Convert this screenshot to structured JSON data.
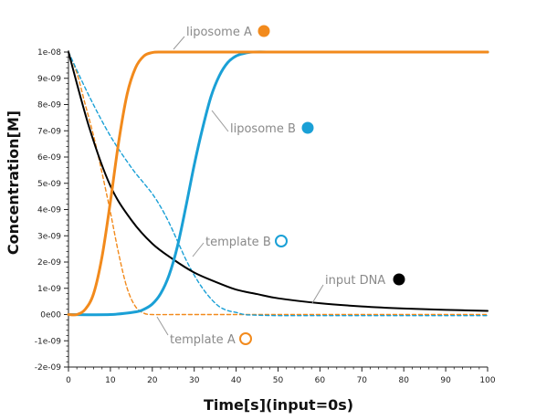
{
  "chart_data": {
    "type": "line",
    "xlabel": "Time[s](input=0s)",
    "ylabel": "Concentration[M]",
    "xlim": [
      0,
      100
    ],
    "ylim": [
      -2e-09,
      1e-08
    ],
    "x_ticks": [
      "0",
      "10",
      "20",
      "30",
      "40",
      "50",
      "60",
      "70",
      "80",
      "90",
      "100"
    ],
    "y_ticks": [
      "-2e-09",
      "-1e-09",
      "0e00",
      "1e-09",
      "2e-09",
      "3e-09",
      "4e-09",
      "5e-09",
      "6e-09",
      "7e-09",
      "8e-09",
      "9e-09",
      "1e-08"
    ],
    "grid": false,
    "series": [
      {
        "name": "liposome A",
        "color": "#f28a1c",
        "style": "solid",
        "marker": "filled-circle",
        "x": [
          0,
          2,
          4,
          6,
          8,
          10,
          12,
          14,
          16,
          18,
          20,
          22,
          24,
          30,
          40,
          50,
          60,
          70,
          80,
          90,
          100
        ],
        "y": [
          0,
          0,
          2e-10,
          8e-10,
          2.2e-09,
          4.3e-09,
          6.6e-09,
          8.4e-09,
          9.4e-09,
          9.85e-09,
          9.98e-09,
          1e-08,
          1e-08,
          1e-08,
          1e-08,
          1e-08,
          1e-08,
          1e-08,
          1e-08,
          1e-08,
          1e-08
        ]
      },
      {
        "name": "liposome B",
        "color": "#1aa0d6",
        "style": "solid",
        "marker": "filled-circle",
        "x": [
          0,
          10,
          16,
          18,
          20,
          22,
          24,
          26,
          28,
          30,
          32,
          34,
          36,
          38,
          40,
          42,
          44,
          50,
          60,
          70,
          80,
          90,
          100
        ],
        "y": [
          0,
          0,
          1e-10,
          2e-10,
          4e-10,
          8e-10,
          1.5e-09,
          2.6e-09,
          4.1e-09,
          5.7e-09,
          7.1e-09,
          8.3e-09,
          9.1e-09,
          9.6e-09,
          9.85e-09,
          9.95e-09,
          1e-08,
          1e-08,
          1e-08,
          1e-08,
          1e-08,
          1e-08,
          1e-08
        ]
      },
      {
        "name": "template A",
        "color": "#f28a1c",
        "style": "dashed",
        "marker": "open-circle",
        "x": [
          0,
          2,
          4,
          6,
          8,
          10,
          12,
          14,
          16,
          18,
          20,
          25,
          30,
          40,
          50,
          60,
          70,
          80,
          90,
          100
        ],
        "y": [
          1e-08,
          9.2e-09,
          8e-09,
          6.8e-09,
          5.4e-09,
          3.9e-09,
          2.3e-09,
          1e-09,
          3e-10,
          5e-11,
          0,
          0,
          0,
          0,
          0,
          0,
          0,
          0,
          0,
          0
        ]
      },
      {
        "name": "template B",
        "color": "#1aa0d6",
        "style": "dashed",
        "marker": "open-circle",
        "x": [
          0,
          5,
          10,
          15,
          18,
          20,
          22,
          24,
          26,
          28,
          30,
          32,
          34,
          36,
          38,
          40,
          42,
          44,
          50,
          60,
          70,
          80,
          90,
          100
        ],
        "y": [
          1e-08,
          8.3e-09,
          6.8e-09,
          5.6e-09,
          5e-09,
          4.6e-09,
          4.1e-09,
          3.5e-09,
          2.8e-09,
          2.1e-09,
          1.5e-09,
          1e-09,
          6e-10,
          3e-10,
          1.5e-10,
          8e-11,
          0,
          -2e-11,
          -4e-11,
          -4e-11,
          -4e-11,
          -4e-11,
          -4e-11,
          -4e-11
        ]
      },
      {
        "name": "input DNA",
        "color": "#000000",
        "style": "solid",
        "marker": "filled-circle",
        "x": [
          0,
          5,
          10,
          15,
          20,
          25,
          30,
          35,
          40,
          45,
          50,
          60,
          70,
          80,
          90,
          100
        ],
        "y": [
          1e-08,
          7.1e-09,
          4.9e-09,
          3.6e-09,
          2.7e-09,
          2.1e-09,
          1.6e-09,
          1.25e-09,
          9.5e-10,
          7.8e-10,
          6.2e-10,
          4.3e-10,
          3.1e-10,
          2.3e-10,
          1.8e-10,
          1.4e-10
        ]
      }
    ]
  }
}
